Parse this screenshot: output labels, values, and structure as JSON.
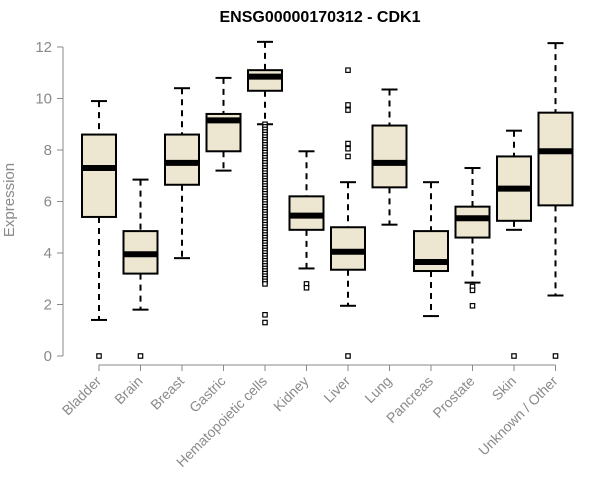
{
  "chart_data": {
    "type": "boxplot",
    "title": "ENSG00000170312 - CDK1",
    "xlabel": "",
    "ylabel": "Expression",
    "ylim": [
      0,
      12
    ],
    "yticks": [
      0,
      2,
      4,
      6,
      8,
      10,
      12
    ],
    "grid": false,
    "legend": "none",
    "colors": {
      "box_fill": "#ede7d1",
      "box_stroke": "#000000",
      "axis": "#8a8a8a"
    },
    "categories": [
      "Bladder",
      "Brain",
      "Breast",
      "Gastric",
      "Hematopoietic cells",
      "Kidney",
      "Liver",
      "Lung",
      "Pancreas",
      "Prostate",
      "Skin",
      "Unknown / Other"
    ],
    "boxes": [
      {
        "category": "Bladder",
        "whisker_low": 1.4,
        "q1": 5.4,
        "median": 7.3,
        "q3": 8.6,
        "whisker_high": 9.9,
        "outliers": [
          0
        ]
      },
      {
        "category": "Brain",
        "whisker_low": 1.8,
        "q1": 3.2,
        "median": 3.95,
        "q3": 4.85,
        "whisker_high": 6.85,
        "outliers": [
          0
        ]
      },
      {
        "category": "Breast",
        "whisker_low": 3.8,
        "q1": 6.65,
        "median": 7.5,
        "q3": 8.6,
        "whisker_high": 10.4,
        "outliers": []
      },
      {
        "category": "Gastric",
        "whisker_low": 7.2,
        "q1": 7.95,
        "median": 9.15,
        "q3": 9.4,
        "whisker_high": 10.8,
        "outliers": []
      },
      {
        "category": "Hematopoietic cells",
        "whisker_low": 9.0,
        "q1": 10.3,
        "median": 10.85,
        "q3": 11.1,
        "whisker_high": 12.2,
        "outliers": [
          9.0,
          8.9,
          8.8,
          8.7,
          8.6,
          8.5,
          8.4,
          8.3,
          8.2,
          8.1,
          8.0,
          7.9,
          7.8,
          7.7,
          7.6,
          7.5,
          7.4,
          7.3,
          7.2,
          7.1,
          7.0,
          6.9,
          6.8,
          6.7,
          6.6,
          6.5,
          6.4,
          6.3,
          6.2,
          6.1,
          6.0,
          5.9,
          5.8,
          5.7,
          5.6,
          5.5,
          5.4,
          5.3,
          5.2,
          5.1,
          5.0,
          4.9,
          4.8,
          4.7,
          4.6,
          4.5,
          4.4,
          4.3,
          4.2,
          4.1,
          4.0,
          3.9,
          3.8,
          3.7,
          3.6,
          3.5,
          3.4,
          3.3,
          3.2,
          3.1,
          3.0,
          2.9,
          2.8,
          1.6,
          1.3
        ]
      },
      {
        "category": "Kidney",
        "whisker_low": 3.4,
        "q1": 4.9,
        "median": 5.45,
        "q3": 6.2,
        "whisker_high": 7.95,
        "outliers": [
          2.8,
          2.65
        ]
      },
      {
        "category": "Liver",
        "whisker_low": 1.95,
        "q1": 3.35,
        "median": 4.05,
        "q3": 5.0,
        "whisker_high": 6.75,
        "outliers": [
          11.1,
          9.75,
          9.55,
          8.25,
          8.05,
          7.75,
          0
        ]
      },
      {
        "category": "Lung",
        "whisker_low": 5.1,
        "q1": 6.55,
        "median": 7.5,
        "q3": 8.95,
        "whisker_high": 10.35,
        "outliers": []
      },
      {
        "category": "Pancreas",
        "whisker_low": 1.55,
        "q1": 3.3,
        "median": 3.65,
        "q3": 4.85,
        "whisker_high": 6.75,
        "outliers": []
      },
      {
        "category": "Prostate",
        "whisker_low": 2.85,
        "q1": 4.6,
        "median": 5.35,
        "q3": 5.8,
        "whisker_high": 7.3,
        "outliers": [
          2.7,
          2.55,
          1.95
        ]
      },
      {
        "category": "Skin",
        "whisker_low": 4.9,
        "q1": 5.25,
        "median": 6.5,
        "q3": 7.75,
        "whisker_high": 8.75,
        "outliers": [
          0
        ]
      },
      {
        "category": "Unknown / Other",
        "whisker_low": 2.35,
        "q1": 5.85,
        "median": 7.95,
        "q3": 9.45,
        "whisker_high": 12.15,
        "outliers": [
          0
        ]
      }
    ]
  }
}
